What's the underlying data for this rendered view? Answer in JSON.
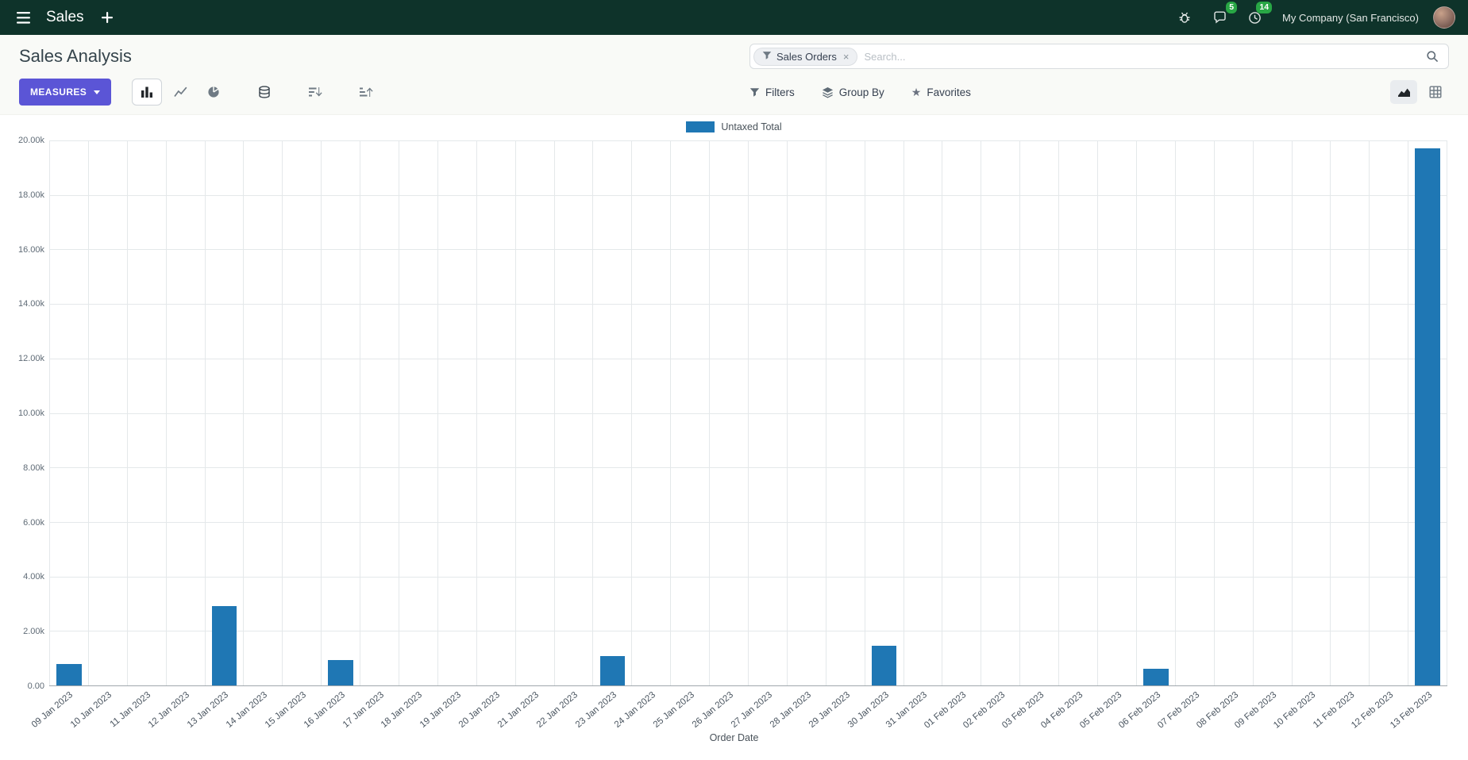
{
  "topbar": {
    "app_name": "Sales",
    "company": "My Company (San Francisco)",
    "message_badge": "5",
    "activity_badge": "14"
  },
  "control_panel": {
    "title": "Sales Analysis",
    "search": {
      "facet_label": "Sales Orders",
      "remove_facet": "×",
      "placeholder": "Search..."
    },
    "measures_label": "MEASURES",
    "filters_label": "Filters",
    "group_by_label": "Group By",
    "favorites_label": "Favorites"
  },
  "chart_data": {
    "type": "bar",
    "title": "",
    "legend": [
      "Untaxed Total"
    ],
    "legend_position": "top",
    "series_color": "#1f77b4",
    "grid": true,
    "xlabel": "Order Date",
    "ylabel": "",
    "ylim": [
      0,
      20000
    ],
    "ytick_labels": [
      "20.00k",
      "18.00k",
      "16.00k",
      "14.00k",
      "12.00k",
      "10.00k",
      "8.00k",
      "6.00k",
      "4.00k",
      "2.00k",
      "0.00"
    ],
    "categories": [
      "09 Jan 2023",
      "10 Jan 2023",
      "11 Jan 2023",
      "12 Jan 2023",
      "13 Jan 2023",
      "14 Jan 2023",
      "15 Jan 2023",
      "16 Jan 2023",
      "17 Jan 2023",
      "18 Jan 2023",
      "19 Jan 2023",
      "20 Jan 2023",
      "21 Jan 2023",
      "22 Jan 2023",
      "23 Jan 2023",
      "24 Jan 2023",
      "25 Jan 2023",
      "26 Jan 2023",
      "27 Jan 2023",
      "28 Jan 2023",
      "29 Jan 2023",
      "30 Jan 2023",
      "31 Jan 2023",
      "01 Feb 2023",
      "02 Feb 2023",
      "03 Feb 2023",
      "04 Feb 2023",
      "05 Feb 2023",
      "06 Feb 2023",
      "07 Feb 2023",
      "08 Feb 2023",
      "09 Feb 2023",
      "10 Feb 2023",
      "11 Feb 2023",
      "12 Feb 2023",
      "13 Feb 2023"
    ],
    "values": [
      780,
      0,
      0,
      0,
      2900,
      0,
      0,
      920,
      0,
      0,
      0,
      0,
      0,
      0,
      1080,
      0,
      0,
      0,
      0,
      0,
      0,
      1450,
      0,
      0,
      0,
      0,
      0,
      0,
      600,
      0,
      0,
      0,
      0,
      0,
      0,
      19700
    ]
  }
}
